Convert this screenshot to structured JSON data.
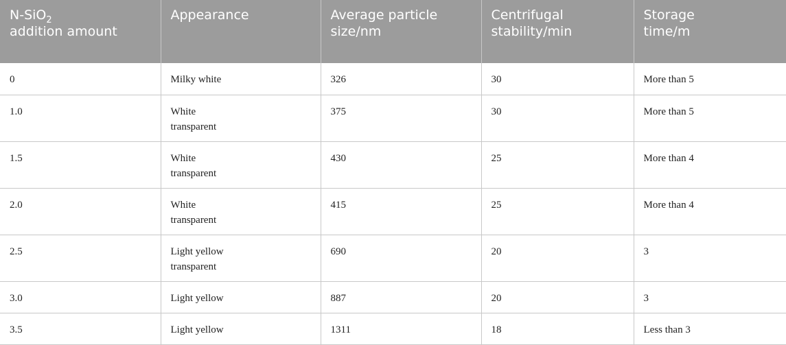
{
  "table": {
    "headers": {
      "col1_prefix": "N-SiO",
      "col1_subscript": "2",
      "col1_suffix": "addition amount",
      "col2": "Appearance",
      "col3": "Average particle size/nm",
      "col4": "Centrifugal stability/min",
      "col5": "Storage time/m"
    },
    "rows": [
      [
        "0",
        "Milky white",
        "326",
        "30",
        "More than 5"
      ],
      [
        "1.0",
        "White\ntransparent",
        "375",
        "30",
        "More than 5"
      ],
      [
        "1.5",
        "White\ntransparent",
        "430",
        "25",
        "More than 4"
      ],
      [
        "2.0",
        "White\ntransparent",
        "415",
        "25",
        "More than 4"
      ],
      [
        "2.5",
        "Light yellow\ntransparent",
        "690",
        "20",
        "3"
      ],
      [
        "3.0",
        "Light yellow",
        "887",
        "20",
        "3"
      ],
      [
        "3.5",
        "Light yellow",
        "1311",
        "18",
        "Less than 3"
      ]
    ]
  }
}
